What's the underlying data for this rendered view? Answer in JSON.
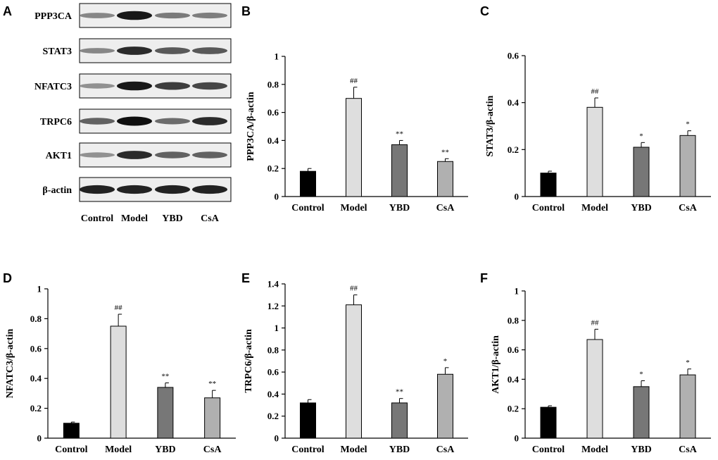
{
  "blot": {
    "panel": "A",
    "rows": [
      {
        "label": "PPP3CA",
        "intensities": [
          0.35,
          0.95,
          0.42,
          0.4
        ]
      },
      {
        "label": "STAT3",
        "intensities": [
          0.35,
          0.85,
          0.6,
          0.6
        ]
      },
      {
        "label": "NFATC3",
        "intensities": [
          0.3,
          0.95,
          0.75,
          0.7
        ]
      },
      {
        "label": "TRPC6",
        "intensities": [
          0.55,
          1.0,
          0.5,
          0.85
        ]
      },
      {
        "label": "AKT1",
        "intensities": [
          0.3,
          0.85,
          0.55,
          0.55
        ]
      },
      {
        "label": "β-actin",
        "intensities": [
          0.9,
          0.9,
          0.9,
          0.9
        ]
      }
    ],
    "lanes": [
      "Control",
      "Model",
      "YBD",
      "CsA"
    ]
  },
  "chart_data": [
    {
      "panel": "B",
      "type": "bar",
      "ylabel": "PPP3CA/β-actin",
      "categories": [
        "Control",
        "Model",
        "YBD",
        "CsA"
      ],
      "values": [
        0.18,
        0.7,
        0.37,
        0.25
      ],
      "errors": [
        0.02,
        0.08,
        0.03,
        0.02
      ],
      "significance": [
        "",
        "##",
        "**",
        "**"
      ],
      "ylim": [
        0,
        1
      ],
      "yticks": [
        0,
        0.2,
        0.4,
        0.6,
        0.8,
        1
      ],
      "ytick_labels": [
        "0",
        "0.2",
        "0.4",
        "0.6",
        "0.8",
        "1"
      ],
      "colors": [
        "#000000",
        "#dedede",
        "#777777",
        "#b0b0b0"
      ]
    },
    {
      "panel": "C",
      "type": "bar",
      "ylabel": "STAT3/β-actin",
      "categories": [
        "Control",
        "Model",
        "YBD",
        "CsA"
      ],
      "values": [
        0.1,
        0.38,
        0.21,
        0.26
      ],
      "errors": [
        0.008,
        0.04,
        0.02,
        0.02
      ],
      "significance": [
        "",
        "##",
        "*",
        "*"
      ],
      "ylim": [
        0,
        0.6
      ],
      "yticks": [
        0,
        0.2,
        0.4,
        0.6
      ],
      "ytick_labels": [
        "0",
        "0.2",
        "0.4",
        "0.6"
      ],
      "colors": [
        "#000000",
        "#dedede",
        "#777777",
        "#b0b0b0"
      ]
    },
    {
      "panel": "D",
      "type": "bar",
      "ylabel": "NFATC3/β-actin",
      "categories": [
        "Control",
        "Model",
        "YBD",
        "CsA"
      ],
      "values": [
        0.1,
        0.75,
        0.34,
        0.27
      ],
      "errors": [
        0.008,
        0.08,
        0.03,
        0.05
      ],
      "significance": [
        "",
        "##",
        "**",
        "**"
      ],
      "ylim": [
        0,
        1
      ],
      "yticks": [
        0,
        0.2,
        0.4,
        0.6,
        0.8,
        1
      ],
      "ytick_labels": [
        "0",
        "0.2",
        "0.4",
        "0.6",
        "0.8",
        "1"
      ],
      "colors": [
        "#000000",
        "#dedede",
        "#777777",
        "#b0b0b0"
      ]
    },
    {
      "panel": "E",
      "type": "bar",
      "ylabel": "TRPC6/β-actin",
      "categories": [
        "Control",
        "Model",
        "YBD",
        "CsA"
      ],
      "values": [
        0.32,
        1.21,
        0.32,
        0.58
      ],
      "errors": [
        0.03,
        0.09,
        0.04,
        0.06
      ],
      "significance": [
        "",
        "##",
        "**",
        "*"
      ],
      "ylim": [
        0,
        1.4
      ],
      "yticks": [
        0,
        0.2,
        0.4,
        0.6,
        0.8,
        1,
        1.2,
        1.4
      ],
      "ytick_labels": [
        "0",
        "0.2",
        "0.4",
        "0.6",
        "0.8",
        "1",
        "1.2",
        "1.4"
      ],
      "colors": [
        "#000000",
        "#dedede",
        "#777777",
        "#b0b0b0"
      ]
    },
    {
      "panel": "F",
      "type": "bar",
      "ylabel": "AKT1/β-actin",
      "categories": [
        "Control",
        "Model",
        "YBD",
        "CsA"
      ],
      "values": [
        0.21,
        0.67,
        0.35,
        0.43
      ],
      "errors": [
        0.01,
        0.07,
        0.04,
        0.04
      ],
      "significance": [
        "",
        "##",
        "*",
        "*"
      ],
      "ylim": [
        0,
        1
      ],
      "yticks": [
        0,
        0.2,
        0.4,
        0.6,
        0.8,
        1
      ],
      "ytick_labels": [
        "0",
        "0.2",
        "0.4",
        "0.6",
        "0.8",
        "1"
      ],
      "colors": [
        "#000000",
        "#dedede",
        "#777777",
        "#b0b0b0"
      ]
    }
  ]
}
